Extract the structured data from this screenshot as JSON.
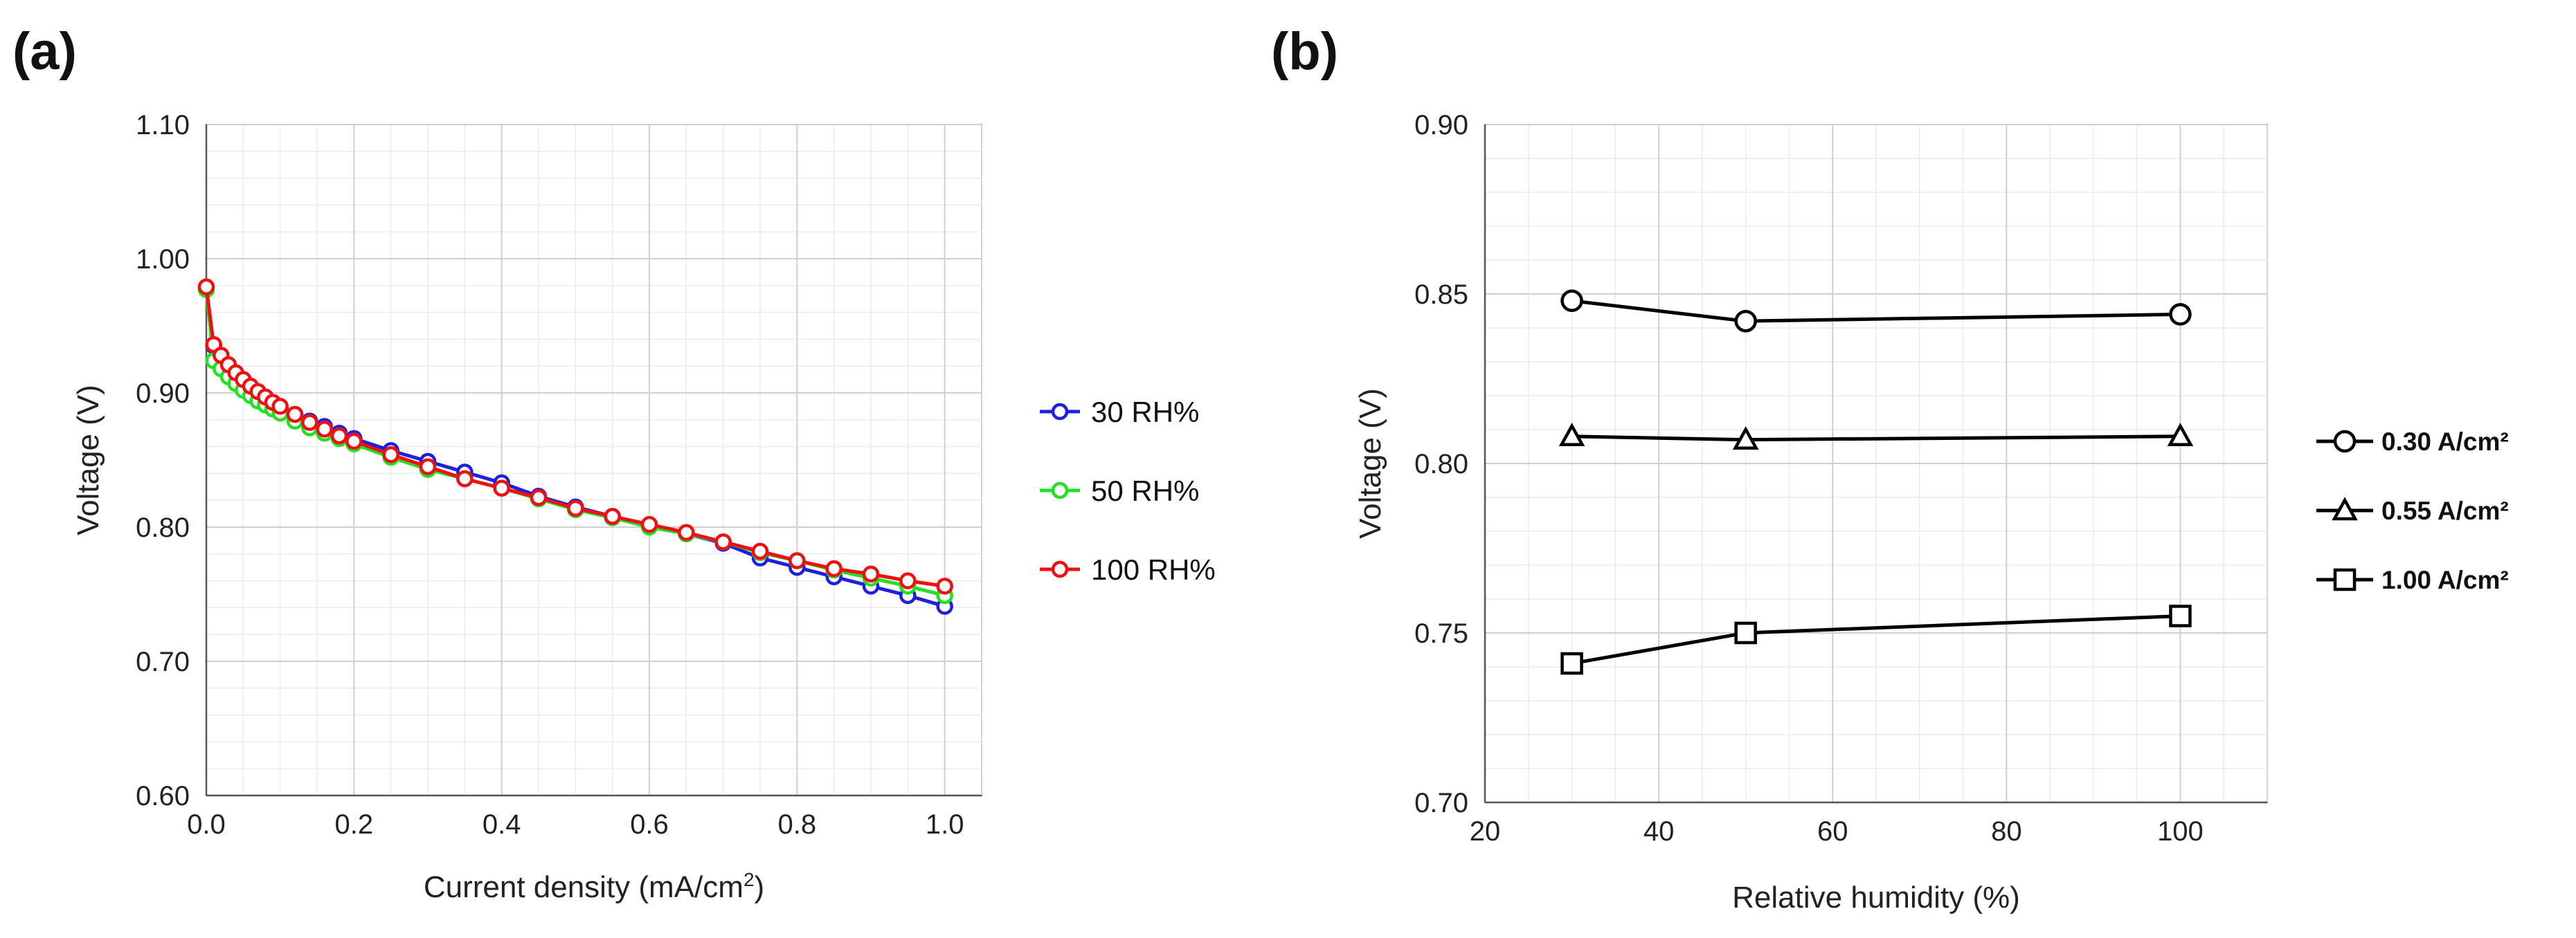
{
  "chart_data": [
    {
      "type": "line",
      "panel_label": "(a)",
      "title": "",
      "xlabel": "Current density (mA/cm",
      "xlabel_sup": "2",
      "xlabel_end": ")",
      "ylabel": "Voltage (V)",
      "xlim": [
        0,
        1.05
      ],
      "ylim": [
        0.6,
        1.1
      ],
      "x_ticks": [
        0,
        0.2,
        0.4,
        0.6,
        0.8,
        1.0
      ],
      "x_tick_labels": [
        "0.0",
        "0.2",
        "0.4",
        "0.6",
        "0.8",
        "1.0"
      ],
      "y_ticks": [
        0.6,
        0.7,
        0.8,
        0.9,
        1.0,
        1.1
      ],
      "y_tick_labels": [
        "0.60",
        "0.70",
        "0.80",
        "0.90",
        "1.00",
        "1.10"
      ],
      "grid": true,
      "legend_position": "right",
      "x": [
        0,
        0.01,
        0.02,
        0.03,
        0.04,
        0.05,
        0.06,
        0.07,
        0.08,
        0.09,
        0.1,
        0.12,
        0.14,
        0.16,
        0.18,
        0.2,
        0.25,
        0.3,
        0.35,
        0.4,
        0.45,
        0.5,
        0.55,
        0.6,
        0.65,
        0.7,
        0.75,
        0.8,
        0.85,
        0.9,
        0.95,
        1.0
      ],
      "series": [
        {
          "name": "30 RH%",
          "color": "#1f1fe0",
          "values": [
            0.978,
            0.935,
            0.928,
            0.92,
            0.914,
            0.909,
            0.904,
            0.9,
            0.896,
            0.892,
            0.889,
            0.884,
            0.879,
            0.875,
            0.87,
            0.866,
            0.857,
            0.849,
            0.841,
            0.833,
            0.823,
            0.815,
            0.808,
            0.801,
            0.795,
            0.788,
            0.777,
            0.77,
            0.763,
            0.756,
            0.749,
            0.741
          ]
        },
        {
          "name": "50 RH%",
          "color": "#22e022",
          "values": [
            0.977,
            0.924,
            0.918,
            0.912,
            0.907,
            0.902,
            0.898,
            0.894,
            0.891,
            0.888,
            0.885,
            0.879,
            0.874,
            0.87,
            0.866,
            0.862,
            0.852,
            0.843,
            0.836,
            0.829,
            0.821,
            0.813,
            0.807,
            0.8,
            0.795,
            0.789,
            0.781,
            0.775,
            0.768,
            0.762,
            0.756,
            0.749
          ]
        },
        {
          "name": "100 RH%",
          "color": "#ee1111",
          "values": [
            0.979,
            0.936,
            0.928,
            0.921,
            0.915,
            0.91,
            0.905,
            0.901,
            0.897,
            0.893,
            0.89,
            0.884,
            0.878,
            0.873,
            0.868,
            0.864,
            0.854,
            0.845,
            0.836,
            0.829,
            0.822,
            0.814,
            0.808,
            0.802,
            0.796,
            0.789,
            0.782,
            0.775,
            0.769,
            0.765,
            0.76,
            0.756
          ]
        }
      ]
    },
    {
      "type": "line",
      "panel_label": "(b)",
      "title": "",
      "xlabel": "Relative humidity (%)",
      "ylabel": "Voltage (V)",
      "xlim": [
        20,
        110
      ],
      "ylim": [
        0.7,
        0.9
      ],
      "x_ticks": [
        20,
        40,
        60,
        80,
        100
      ],
      "x_tick_labels": [
        "20",
        "40",
        "60",
        "80",
        "100"
      ],
      "y_ticks": [
        0.7,
        0.75,
        0.8,
        0.85,
        0.9
      ],
      "y_tick_labels": [
        "0.70",
        "0.75",
        "0.80",
        "0.85",
        "0.90"
      ],
      "grid": true,
      "legend_position": "right",
      "x": [
        30,
        50,
        100
      ],
      "series": [
        {
          "name": "0.30 A/cm²",
          "marker": "circle",
          "color": "#000000",
          "values": [
            0.848,
            0.842,
            0.844
          ]
        },
        {
          "name": "0.55 A/cm²",
          "marker": "triangle",
          "color": "#000000",
          "values": [
            0.808,
            0.807,
            0.808
          ]
        },
        {
          "name": "1.00 A/cm²",
          "marker": "square",
          "color": "#000000",
          "values": [
            0.741,
            0.75,
            0.755
          ]
        }
      ]
    }
  ]
}
